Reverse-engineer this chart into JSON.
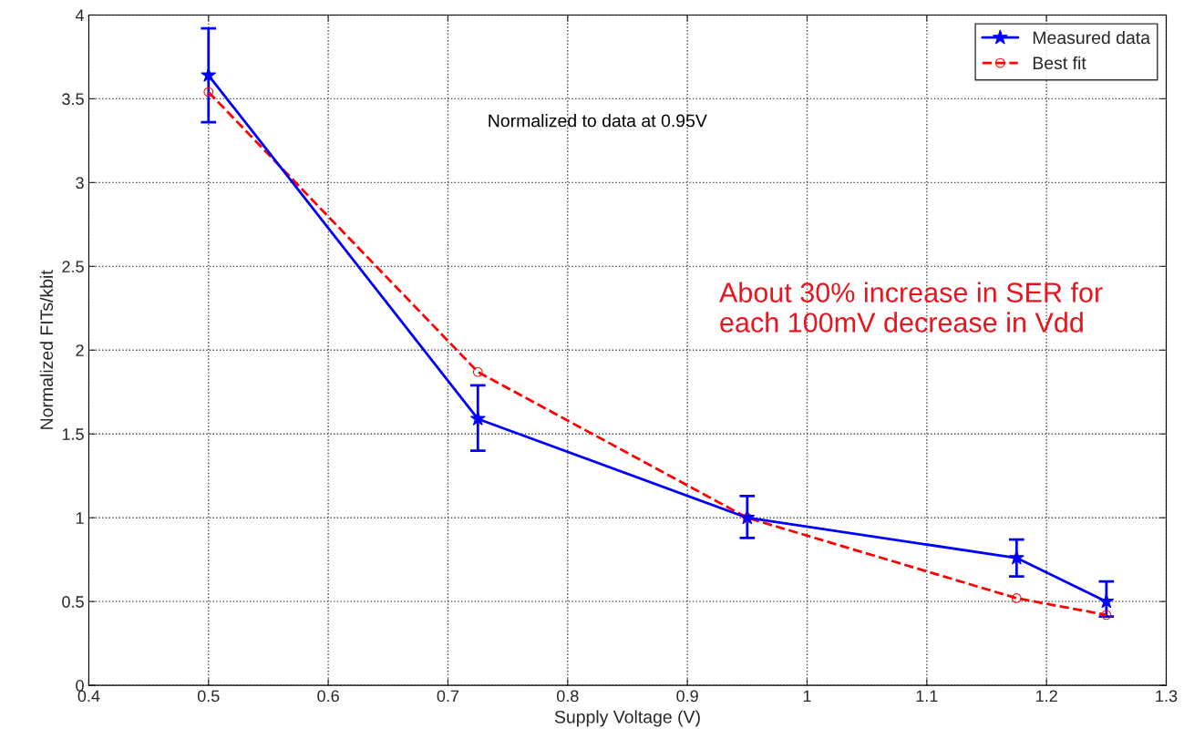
{
  "chart_data": {
    "type": "line",
    "xlabel": "Supply Voltage (V)",
    "ylabel": "Normalized FITs/kbit",
    "x": [
      0.5,
      0.725,
      0.95,
      1.175,
      1.25
    ],
    "series": [
      {
        "name": "Measured data",
        "color": "#0000ff",
        "values": [
          3.64,
          1.59,
          1.0,
          0.76,
          0.5
        ],
        "errors": [
          [
            3.36,
            3.92
          ],
          [
            1.4,
            1.79
          ],
          [
            0.88,
            1.13
          ],
          [
            0.65,
            0.87
          ],
          [
            0.41,
            0.62
          ]
        ],
        "marker": "star",
        "line_style": "solid"
      },
      {
        "name": "Best fit",
        "color": "#ff0000",
        "values": [
          3.54,
          1.87,
          1.0,
          0.52,
          0.42
        ],
        "marker": "circle",
        "line_style": "dashed"
      }
    ],
    "annotations": [
      "Normalized to data at 0.95V",
      "About 30% increase in SER for\neach 100mV decrease in Vdd"
    ],
    "xlim": [
      0.4,
      1.3
    ],
    "xticks": [
      0.4,
      0.5,
      0.6,
      0.7,
      0.8,
      0.9,
      1,
      1.1,
      1.2,
      1.3
    ],
    "ylim": [
      0,
      4
    ],
    "yticks": [
      0,
      0.5,
      1,
      1.5,
      2,
      2.5,
      3,
      3.5,
      4
    ],
    "grid": true,
    "legend": "top right"
  }
}
